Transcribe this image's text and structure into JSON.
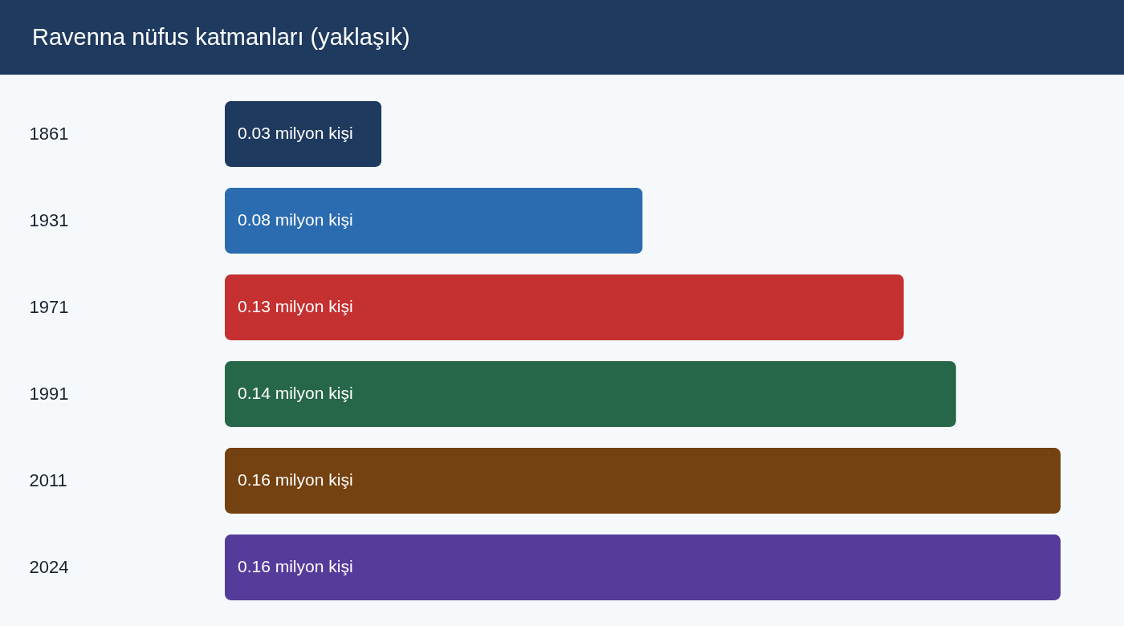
{
  "chart_data": {
    "type": "bar",
    "title": "Ravenna nüfus katmanları (yaklaşık)",
    "orientation": "horizontal",
    "categories": [
      "1861",
      "1931",
      "1971",
      "1991",
      "2011",
      "2024"
    ],
    "values": [
      0.03,
      0.08,
      0.13,
      0.14,
      0.16,
      0.16
    ],
    "colors": [
      "#1f3a5f",
      "#2b6cb0",
      "#c53030",
      "#276749",
      "#744210",
      "#553c9a"
    ],
    "value_labels": [
      "0.03 milyon kişi",
      "0.08 milyon kişi",
      "0.13 milyon kişi",
      "0.14 milyon kişi",
      "0.16 milyon kişi",
      "0.16 milyon kişi"
    ]
  }
}
